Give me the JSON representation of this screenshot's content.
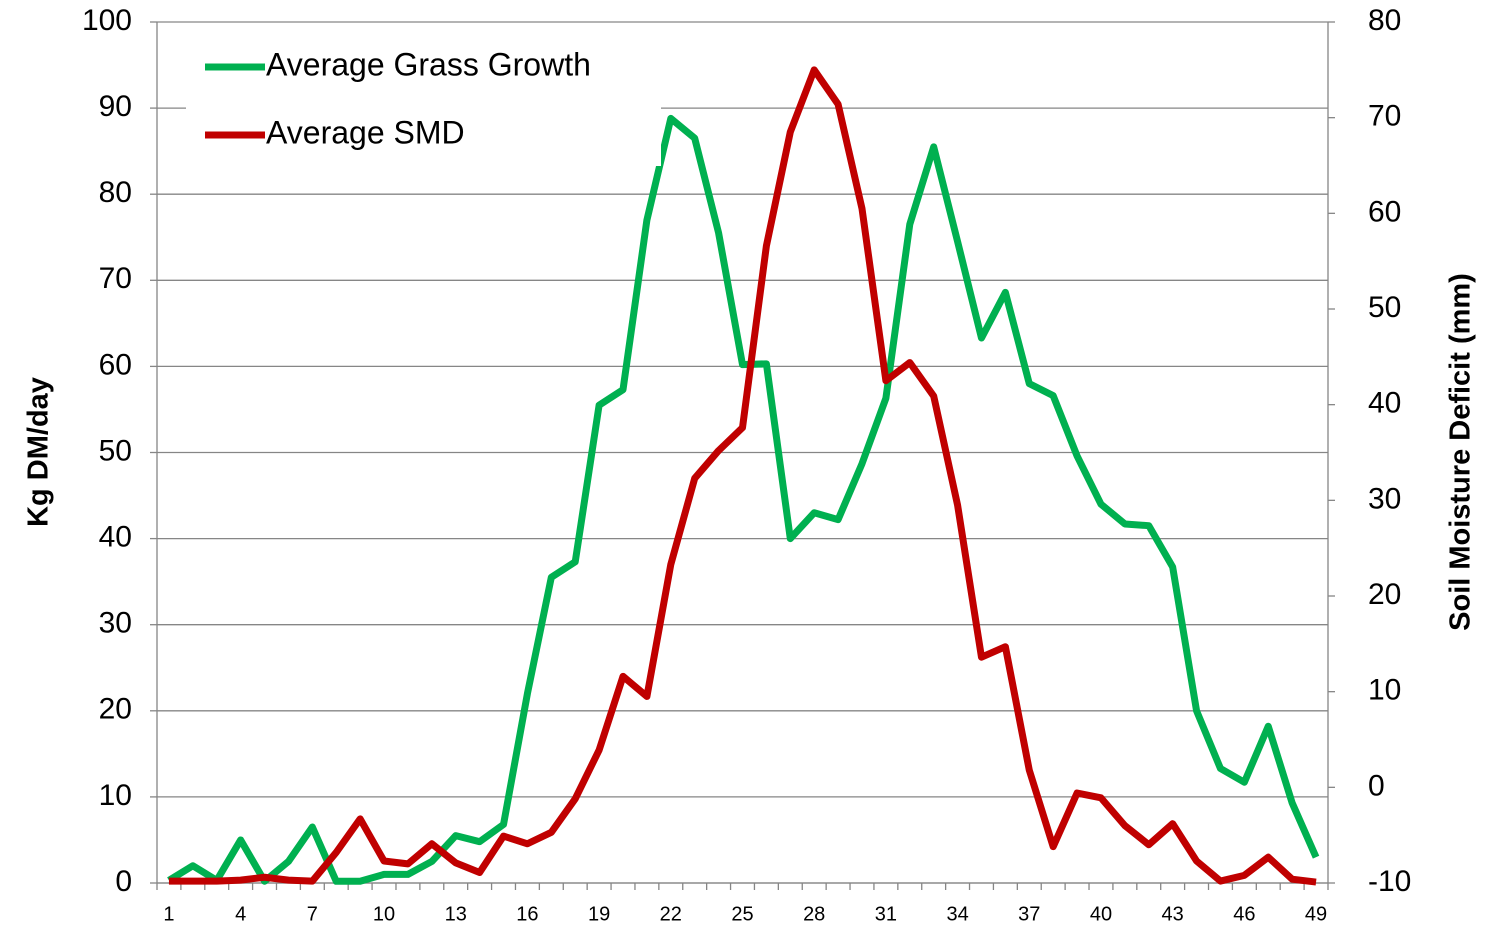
{
  "chart_data": {
    "type": "line",
    "categories": [
      1,
      null,
      null,
      4,
      null,
      null,
      7,
      null,
      null,
      10,
      null,
      null,
      13,
      null,
      null,
      16,
      null,
      null,
      19,
      null,
      null,
      22,
      null,
      null,
      25,
      null,
      null,
      28,
      null,
      null,
      31,
      null,
      null,
      34,
      null,
      null,
      37,
      null,
      null,
      40,
      null,
      null,
      43,
      null,
      null,
      46,
      null,
      null,
      49
    ],
    "y_label": "Kg DM/day",
    "y2_label": "Soil Moisture Deficit (mm)",
    "ylim": [
      0,
      100
    ],
    "yticks": [
      0,
      10,
      20,
      30,
      40,
      50,
      60,
      70,
      80,
      90,
      100
    ],
    "y2lim": [
      -10,
      80
    ],
    "y2ticks": [
      -10,
      0,
      10,
      20,
      30,
      40,
      50,
      60,
      70,
      80
    ],
    "grid": true,
    "legend": "upper left",
    "series": [
      {
        "name": "Average Grass Growth",
        "color": "#00b050",
        "values": [
          0.3,
          2,
          0.3,
          5,
          0.2,
          2.5,
          6.5,
          0.2,
          0.2,
          1,
          1,
          2.5,
          5.5,
          4.8,
          6.8,
          22,
          35.5,
          37.3,
          55.5,
          57.3,
          77,
          88.8,
          86.5,
          75.5,
          60.2,
          60.3,
          40,
          43,
          42.2,
          48.7,
          56.3,
          76.5,
          85.5,
          74.5,
          63.3,
          68.6,
          58,
          56.6,
          49.6,
          44,
          41.7,
          41.5,
          36.7,
          20,
          13.3,
          11.7,
          18.2,
          9.3,
          3
        ]
      },
      {
        "name": "Average SMD",
        "color": "#c00000",
        "axis": "y2",
        "values": [
          -9.8,
          -9.8,
          -9.8,
          -9.7,
          -9.4,
          -9.7,
          -9.8,
          -6.8,
          -3.3,
          -7.7,
          -8,
          -5.9,
          -7.9,
          -8.9,
          -5.1,
          -5.9,
          -4.7,
          -1.2,
          3.9,
          11.6,
          9.5,
          23.3,
          32.3,
          35.2,
          37.6,
          56.6,
          68.5,
          75,
          71.4,
          60.5,
          42.5,
          44.4,
          40.9,
          29.5,
          13.6,
          14.7,
          1.8,
          -6.2,
          -0.6,
          -1.1,
          -4,
          -6,
          -3.8,
          -7.7,
          -9.8,
          -9.2,
          -7.3,
          -9.6,
          -9.9
        ]
      }
    ]
  }
}
